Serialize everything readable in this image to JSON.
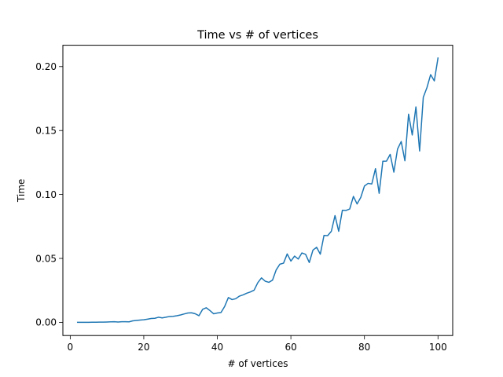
{
  "chart_data": {
    "type": "line",
    "title": "Time vs # of vertices",
    "xlabel": "# of vertices",
    "ylabel": "Time",
    "xlim": [
      -2,
      104
    ],
    "ylim": [
      -0.0103,
      0.2167
    ],
    "xticks": [
      0,
      20,
      40,
      60,
      80,
      100
    ],
    "xtick_labels": [
      "0",
      "20",
      "40",
      "60",
      "80",
      "100"
    ],
    "yticks": [
      0.0,
      0.05,
      0.1,
      0.15,
      0.2
    ],
    "ytick_labels": [
      "0.00",
      "0.05",
      "0.10",
      "0.15",
      "0.20"
    ],
    "grid": false,
    "legend": "none",
    "series": [
      {
        "color": "#1f77b4",
        "x": [
          2,
          3,
          4,
          5,
          6,
          7,
          8,
          9,
          10,
          11,
          12,
          13,
          14,
          15,
          16,
          17,
          18,
          19,
          20,
          21,
          22,
          23,
          24,
          25,
          26,
          27,
          28,
          29,
          30,
          31,
          32,
          33,
          34,
          35,
          36,
          37,
          38,
          39,
          40,
          41,
          42,
          43,
          44,
          45,
          46,
          47,
          48,
          49,
          50,
          51,
          52,
          53,
          54,
          55,
          56,
          57,
          58,
          59,
          60,
          61,
          62,
          63,
          64,
          65,
          66,
          67,
          68,
          69,
          70,
          71,
          72,
          73,
          74,
          75,
          76,
          77,
          78,
          79,
          80,
          81,
          82,
          83,
          84,
          85,
          86,
          87,
          88,
          89,
          90,
          91,
          92,
          93,
          94,
          95,
          96,
          97,
          98,
          99,
          100
        ],
        "y": [
          0.0,
          0.0,
          0.0,
          0.0,
          0.0001,
          0.0001,
          0.0002,
          0.0002,
          0.0003,
          0.0004,
          0.0005,
          0.0003,
          0.0005,
          0.0005,
          0.0004,
          0.0012,
          0.0015,
          0.0018,
          0.002,
          0.0025,
          0.003,
          0.0032,
          0.004,
          0.0035,
          0.004,
          0.0046,
          0.0047,
          0.0052,
          0.0058,
          0.0066,
          0.0073,
          0.0075,
          0.0067,
          0.0052,
          0.0102,
          0.0114,
          0.0092,
          0.0067,
          0.0073,
          0.0077,
          0.0125,
          0.0194,
          0.0178,
          0.0185,
          0.0205,
          0.0215,
          0.0228,
          0.0238,
          0.0252,
          0.031,
          0.0348,
          0.0322,
          0.0313,
          0.033,
          0.041,
          0.0455,
          0.0463,
          0.0535,
          0.0479,
          0.0518,
          0.0495,
          0.0543,
          0.0532,
          0.0468,
          0.0565,
          0.0587,
          0.0533,
          0.068,
          0.0678,
          0.0712,
          0.0835,
          0.0712,
          0.0876,
          0.0875,
          0.0887,
          0.0985,
          0.0926,
          0.0977,
          0.1066,
          0.1087,
          0.1082,
          0.1202,
          0.1009,
          0.126,
          0.1261,
          0.1314,
          0.1175,
          0.1355,
          0.1414,
          0.1264,
          0.1628,
          0.1465,
          0.1685,
          0.134,
          0.176,
          0.1836,
          0.1937,
          0.1888,
          0.2067
        ]
      }
    ]
  }
}
